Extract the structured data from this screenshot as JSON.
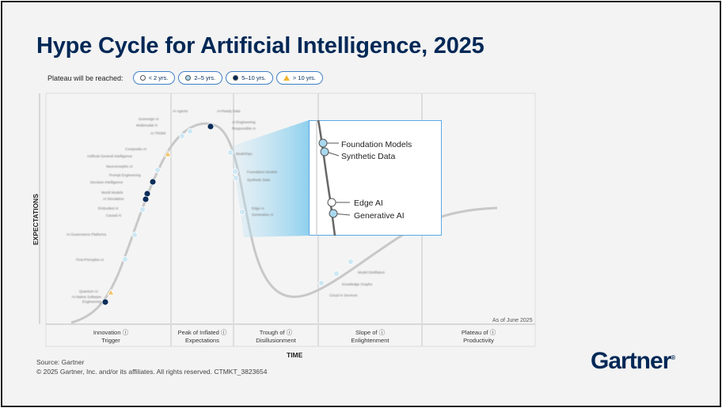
{
  "title": "Hype Cycle for Artificial Intelligence, 2025",
  "legend": {
    "label": "Plateau will be reached:",
    "items": [
      {
        "text": "< 2 yrs.",
        "marker": "white-circle",
        "color": "#ffffff"
      },
      {
        "text": "2–5 yrs.",
        "marker": "light-blue-circle",
        "color": "#a9d8ee"
      },
      {
        "text": "5–10 yrs.",
        "marker": "dark-blue-circle",
        "color": "#002856"
      },
      {
        "text": "> 10 yrs.",
        "marker": "yellow-triangle",
        "color": "#f2b632"
      }
    ]
  },
  "axes": {
    "y": "EXPECTATIONS",
    "x": "TIME"
  },
  "phases": [
    {
      "line1": "Innovation",
      "line2": "Trigger"
    },
    {
      "line1": "Peak of Inflated",
      "line2": "Expectations"
    },
    {
      "line1": "Trough of",
      "line2": "Disillusionment"
    },
    {
      "line1": "Slope of",
      "line2": "Enlightenment"
    },
    {
      "line1": "Plateau of",
      "line2": "Productivity"
    }
  ],
  "as_of": "As of June 2025",
  "faded_labels": [
    "AI Agents",
    "AI-Ready Data",
    "Sovereign AI",
    "Multimodal AI",
    "AI TRiSM",
    "AI Engineering",
    "Responsible AI",
    "Composite AI",
    "Artificial General Intelligence",
    "Neuromorphic AI",
    "Prompt Engineering",
    "Decision Intelligence",
    "World Models",
    "AI Simulation",
    "Embodied AI",
    "Causal AI",
    "AI Governance Platforms",
    "First-Principles AI",
    "Quantum AI",
    "AI-Native Software Engineering",
    "ModelOps",
    "Foundation Models",
    "Synthetic Data",
    "Edge AI",
    "Generative AI",
    "Model Distillation",
    "Knowledge Graphs",
    "Cloud AI Services"
  ],
  "callout": {
    "items": [
      "Foundation Models",
      "Synthetic Data",
      "Edge AI",
      "Generative AI"
    ]
  },
  "footer": {
    "source": "Source: Gartner",
    "copyright": "© 2025 Gartner, Inc. and/or its affiliates. All rights reserved. CTMKT_3823654"
  },
  "logo": "Gartner"
}
